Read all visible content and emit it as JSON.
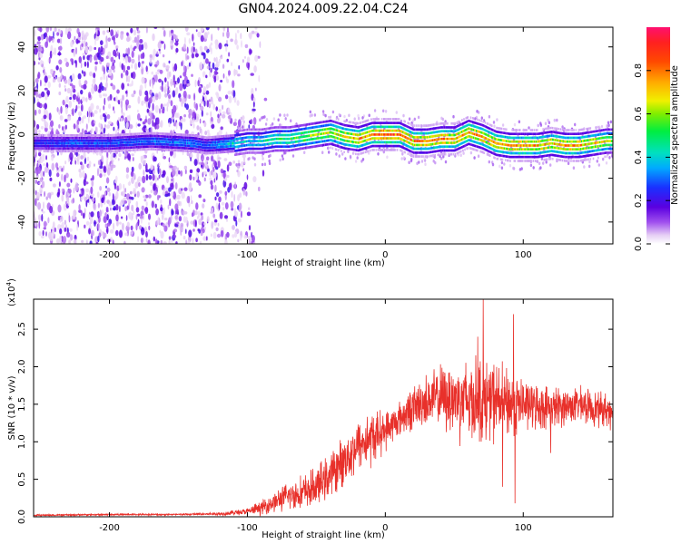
{
  "title": "GN04.2024.009.22.04.C24",
  "chart_data": [
    {
      "type": "heatmap",
      "title": "GN04.2024.009.22.04.C24",
      "xlabel": "Height of straight line (km)",
      "ylabel": "Frequency (Hz)",
      "xlim": [
        -255,
        165
      ],
      "ylim": [
        -50,
        49
      ],
      "xticks": [
        -200,
        -100,
        0,
        100
      ],
      "xtick_labels": [
        "-200",
        "-100",
        "0",
        "100"
      ],
      "yticks": [
        -40,
        -20,
        0,
        20,
        40
      ],
      "ytick_labels": [
        "-40",
        "-20",
        "0",
        "20",
        "40"
      ],
      "colorbar": {
        "label": "Normalized spectral amplitude",
        "range": [
          0.0,
          1.0
        ],
        "ticks": [
          0.0,
          0.2,
          0.4,
          0.6,
          0.8
        ],
        "tick_labels": [
          "0.0",
          "0.2",
          "0.4",
          "0.6",
          "0.8"
        ]
      },
      "noise_region_x": [
        -255,
        -110
      ],
      "ridge": {
        "x": [
          -255,
          -230,
          -200,
          -170,
          -140,
          -130,
          -110,
          -100,
          -90,
          -80,
          -70,
          -60,
          -50,
          -40,
          -30,
          -20,
          -10,
          0,
          10,
          20,
          30,
          40,
          50,
          60,
          70,
          80,
          90,
          100,
          110,
          120,
          130,
          140,
          150,
          160,
          165
        ],
        "freq": [
          -4,
          -4,
          -4,
          -3,
          -4,
          -5,
          -4,
          -3,
          -3,
          -2,
          -2,
          -1,
          0,
          1,
          -1,
          -2,
          0,
          0,
          0,
          -3,
          -3,
          -2,
          -2,
          1,
          -1,
          -4,
          -5,
          -5,
          -5,
          -4,
          -5,
          -5,
          -4,
          -3,
          -3
        ],
        "amplitude": [
          0.25,
          0.3,
          0.3,
          0.32,
          0.35,
          0.3,
          0.45,
          0.4,
          0.45,
          0.5,
          0.55,
          0.6,
          0.65,
          0.7,
          0.75,
          0.8,
          0.85,
          0.9,
          0.88,
          0.82,
          0.85,
          0.84,
          0.8,
          0.82,
          0.8,
          0.78,
          0.8,
          0.82,
          0.8,
          0.78,
          0.8,
          0.8,
          0.75,
          0.7,
          0.6
        ]
      }
    },
    {
      "type": "line",
      "xlabel": "Height of straight line (km)",
      "ylabel": "SNR (10 * v/v)",
      "y_multiplier_label": "(x10",
      "y_multiplier_exp": "4",
      "xlim": [
        -255,
        165
      ],
      "ylim": [
        0,
        2.9
      ],
      "xticks": [
        -200,
        -100,
        0,
        100
      ],
      "xtick_labels": [
        "-200",
        "-100",
        "0",
        "100"
      ],
      "yticks": [
        0.0,
        0.5,
        1.0,
        1.5,
        2.0,
        2.5
      ],
      "ytick_labels": [
        "0.0",
        "0.5",
        "1.0",
        "1.5",
        "2.0",
        "2.5"
      ],
      "color": "#e8302a",
      "series": [
        {
          "name": "SNR",
          "x": [
            -255,
            -200,
            -150,
            -120,
            -100,
            -90,
            -80,
            -70,
            -60,
            -50,
            -40,
            -30,
            -20,
            -10,
            0,
            10,
            20,
            30,
            40,
            50,
            60,
            70,
            80,
            90,
            100,
            110,
            120,
            130,
            140,
            150,
            160,
            165
          ],
          "values": [
            0.02,
            0.03,
            0.03,
            0.04,
            0.07,
            0.12,
            0.2,
            0.28,
            0.32,
            0.4,
            0.55,
            0.75,
            0.95,
            1.05,
            1.15,
            1.3,
            1.45,
            1.55,
            1.6,
            1.58,
            1.55,
            1.55,
            1.55,
            1.5,
            1.5,
            1.47,
            1.45,
            1.47,
            1.5,
            1.45,
            1.42,
            1.42
          ],
          "noise": [
            0.01,
            0.01,
            0.01,
            0.02,
            0.04,
            0.08,
            0.12,
            0.16,
            0.2,
            0.22,
            0.25,
            0.28,
            0.3,
            0.32,
            0.22,
            0.2,
            0.25,
            0.3,
            0.35,
            0.45,
            0.5,
            0.5,
            0.45,
            0.4,
            0.3,
            0.25,
            0.25,
            0.22,
            0.2,
            0.2,
            0.2,
            0.2
          ],
          "spikes": [
            {
              "x": 71,
              "y": 2.9
            },
            {
              "x": 93,
              "y": 2.7
            },
            {
              "x": 94,
              "y": 0.18
            },
            {
              "x": 67,
              "y": 2.4
            },
            {
              "x": 85,
              "y": 0.4
            },
            {
              "x": 120,
              "y": 0.85
            }
          ]
        }
      ]
    }
  ]
}
